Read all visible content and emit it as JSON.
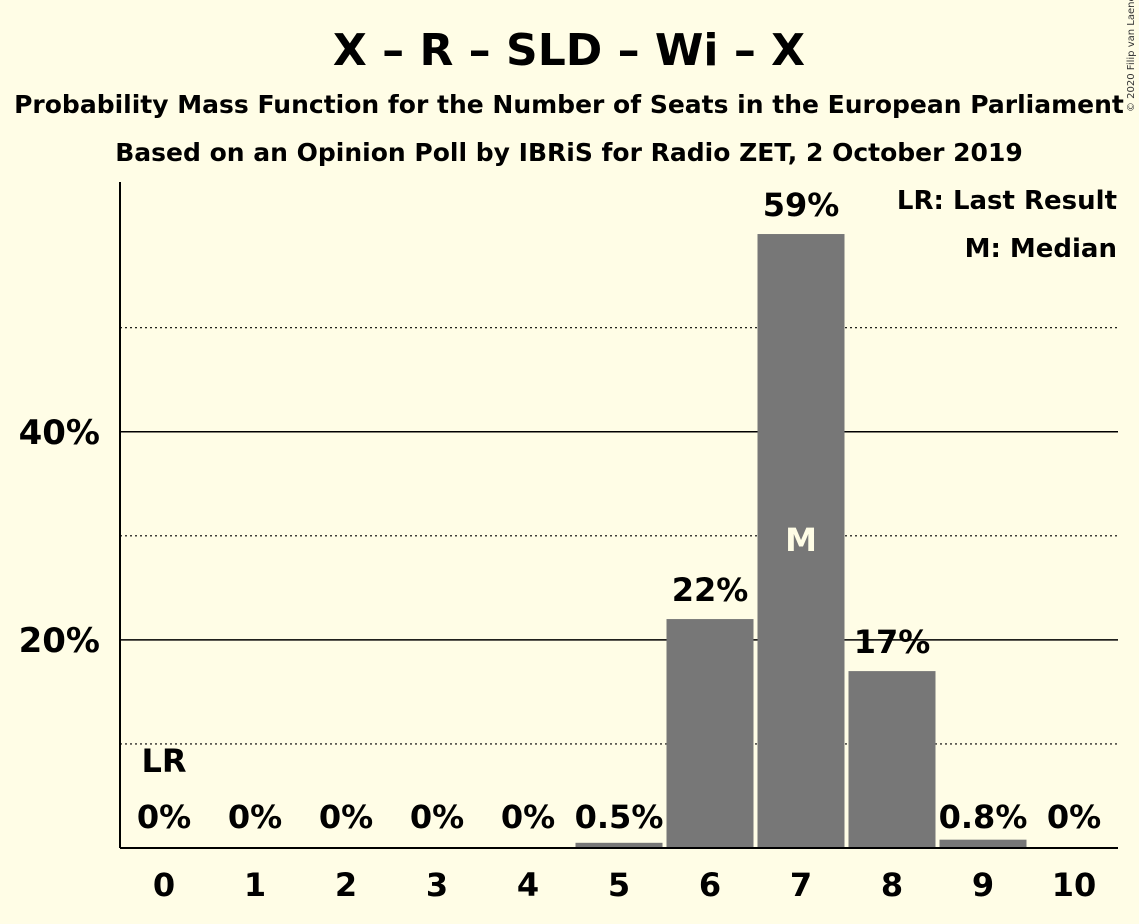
{
  "chart_data": {
    "type": "bar",
    "title": "X – R – SLD – Wi – X",
    "subtitle_lines": [
      "Probability Mass Function for the Number of Seats in the European Parliament",
      "Based on an Opinion Poll by IBRiS for Radio ZET, 2 October 2019"
    ],
    "categories": [
      "0",
      "1",
      "2",
      "3",
      "4",
      "5",
      "6",
      "7",
      "8",
      "9",
      "10"
    ],
    "values": [
      0,
      0,
      0,
      0,
      0,
      0.5,
      22,
      59,
      17,
      0.8,
      0
    ],
    "data_labels": [
      "0%",
      "0%",
      "0%",
      "0%",
      "0%",
      "0.5%",
      "22%",
      "59%",
      "17%",
      "0.8%",
      "0%"
    ],
    "ylim": [
      0,
      64
    ],
    "yticks": [
      {
        "value": 20,
        "label": "20%"
      },
      {
        "value": 40,
        "label": "40%"
      }
    ],
    "minor_gridlines": [
      10,
      30,
      50
    ],
    "last_result_index": 0,
    "last_result_marker": "LR",
    "median_index": 7,
    "median_marker": "M",
    "legend": [
      "LR: Last Result",
      "M: Median"
    ],
    "legend_position": "top-right",
    "copyright": "© 2020 Filip van Laenen",
    "bar_color": "#777777",
    "background_color": "#FFFDE6"
  }
}
